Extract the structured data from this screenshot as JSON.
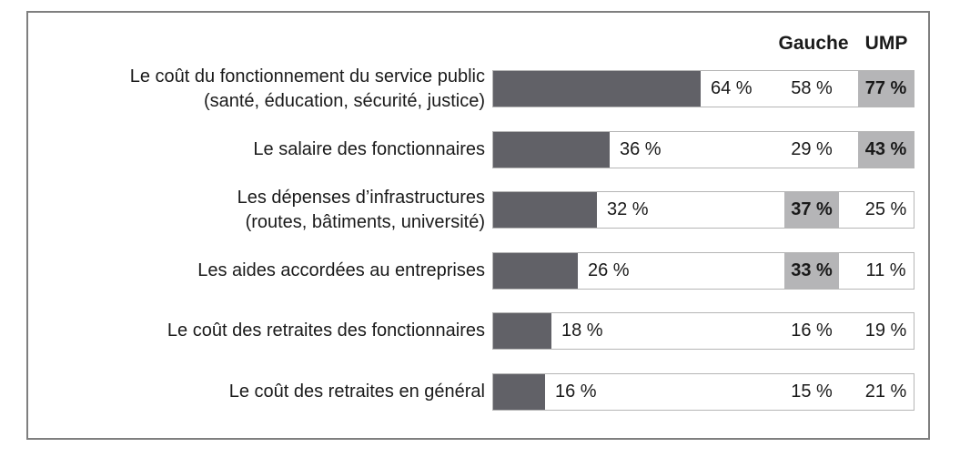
{
  "header": {
    "gauche_label": "Gauche",
    "ump_label": "UMP"
  },
  "colors": {
    "bar": "#616167",
    "highlight": "#b5b5b7",
    "track_border": "#b5b5b5",
    "frame_border": "#7f7f7f",
    "text": "#1a1a1a",
    "background": "#ffffff"
  },
  "chart_data": {
    "type": "bar",
    "orientation": "horizontal",
    "unit": "%",
    "value_suffix": " %",
    "series_headers": [
      "Gauche",
      "UMP"
    ],
    "xlim": [
      0,
      100
    ],
    "grid": false,
    "rows": [
      {
        "label": "Le coût du fonctionnement du service public (santé, éducation, sécurité, justice)",
        "label_lines": [
          "Le coût du fonctionnement du service public",
          "(santé, éducation, sécurité, justice)"
        ],
        "total": 64,
        "gauche": 58,
        "ump": 77,
        "highlighted": "ump"
      },
      {
        "label": "Le salaire des fonctionnaires",
        "label_lines": [
          "Le salaire des fonctionnaires"
        ],
        "total": 36,
        "gauche": 29,
        "ump": 43,
        "highlighted": "ump"
      },
      {
        "label": "Les dépenses d’infrastructures (routes, bâtiments, université)",
        "label_lines": [
          "Les dépenses d’infrastructures",
          "(routes, bâtiments, université)"
        ],
        "total": 32,
        "gauche": 37,
        "ump": 25,
        "highlighted": "gauche"
      },
      {
        "label": "Les aides accordées au entreprises",
        "label_lines": [
          "Les aides accordées au entreprises"
        ],
        "total": 26,
        "gauche": 33,
        "ump": 11,
        "highlighted": "gauche"
      },
      {
        "label": "Le coût des retraites des fonctionnaires",
        "label_lines": [
          "Le coût des retraites des fonctionnaires"
        ],
        "total": 18,
        "gauche": 16,
        "ump": 19,
        "highlighted": null
      },
      {
        "label": "Le coût des retraites en général",
        "label_lines": [
          "Le coût des retraites en général"
        ],
        "total": 16,
        "gauche": 15,
        "ump": 21,
        "highlighted": null
      }
    ]
  }
}
